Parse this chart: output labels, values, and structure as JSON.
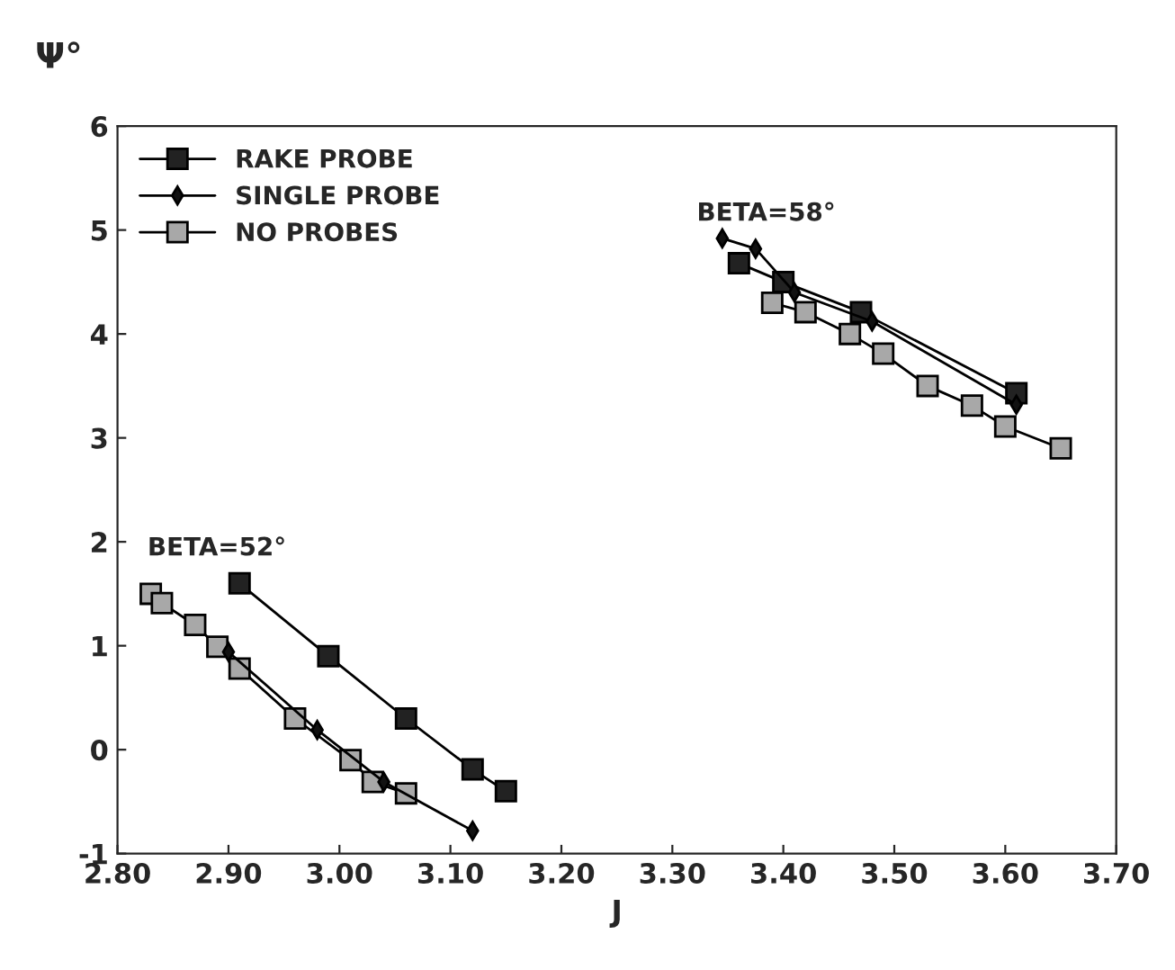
{
  "chart_data": {
    "type": "line",
    "xlabel": "J",
    "ylabel": "Ψ°",
    "xlim": [
      2.8,
      3.7
    ],
    "ylim": [
      -1,
      6
    ],
    "xticks": [
      {
        "value": 2.8,
        "label": "2.80"
      },
      {
        "value": 2.9,
        "label": "2.90"
      },
      {
        "value": 3.0,
        "label": "3.00"
      },
      {
        "value": 3.1,
        "label": "3.10"
      },
      {
        "value": 3.2,
        "label": "3.20"
      },
      {
        "value": 3.3,
        "label": "3.30"
      },
      {
        "value": 3.4,
        "label": "3.40"
      },
      {
        "value": 3.5,
        "label": "3.50"
      },
      {
        "value": 3.6,
        "label": "3.60"
      },
      {
        "value": 3.7,
        "label": "3.70"
      }
    ],
    "yticks": [
      -1,
      0,
      1,
      2,
      3,
      4,
      5,
      6
    ],
    "grid": false,
    "legend": "top left",
    "line_style": "solid",
    "series": [
      {
        "name": "RAKE PROBE",
        "color": "#222222",
        "marker": "square",
        "x": [
          2.91,
          2.99,
          3.06,
          3.12,
          3.15,
          3.3,
          3.36,
          3.4,
          3.47,
          3.61
        ],
        "values": [
          1.6,
          0.9,
          0.3,
          -0.19,
          -0.4,
          null,
          4.68,
          4.5,
          4.21,
          3.43
        ]
      },
      {
        "name": "SINGLE PROBE",
        "color": "#111111",
        "marker": "diamond",
        "x": [
          2.9,
          2.98,
          3.04,
          3.12,
          3.3,
          3.345,
          3.375,
          3.41,
          3.48,
          3.61
        ],
        "values": [
          0.94,
          0.19,
          -0.31,
          -0.78,
          null,
          4.92,
          4.82,
          4.4,
          4.12,
          3.32
        ]
      },
      {
        "name": "NO PROBES",
        "color": "#a8a8a8",
        "marker": "square",
        "x": [
          2.83,
          2.84,
          2.87,
          2.89,
          2.91,
          2.96,
          3.01,
          3.03,
          3.06,
          3.3,
          3.39,
          3.42,
          3.46,
          3.49,
          3.53,
          3.57,
          3.6,
          3.65
        ],
        "values": [
          1.5,
          1.41,
          1.2,
          0.99,
          0.78,
          0.3,
          -0.1,
          -0.31,
          -0.42,
          null,
          4.3,
          4.21,
          4.0,
          3.81,
          3.5,
          3.31,
          3.11,
          2.9
        ]
      }
    ],
    "annotations": [
      "BETA=58°",
      "BETA=52°"
    ]
  }
}
